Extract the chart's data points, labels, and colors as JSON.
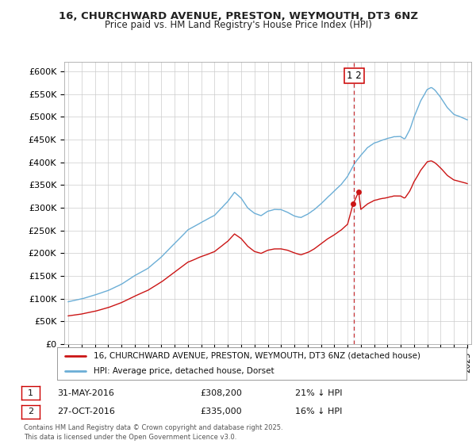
{
  "title_line1": "16, CHURCHWARD AVENUE, PRESTON, WEYMOUTH, DT3 6NZ",
  "title_line2": "Price paid vs. HM Land Registry's House Price Index (HPI)",
  "ylim": [
    0,
    620000
  ],
  "yticks": [
    0,
    50000,
    100000,
    150000,
    200000,
    250000,
    300000,
    350000,
    400000,
    450000,
    500000,
    550000,
    600000
  ],
  "ytick_labels": [
    "£0",
    "£50K",
    "£100K",
    "£150K",
    "£200K",
    "£250K",
    "£300K",
    "£350K",
    "£400K",
    "£450K",
    "£500K",
    "£550K",
    "£600K"
  ],
  "hpi_color": "#6baed6",
  "price_color": "#cb1515",
  "annotation_box_color": "#cc0000",
  "dashed_line_color": "#cc3333",
  "shade_color": "#d0e8f8",
  "legend_label_price": "16, CHURCHWARD AVENUE, PRESTON, WEYMOUTH, DT3 6NZ (detached house)",
  "legend_label_hpi": "HPI: Average price, detached house, Dorset",
  "sale1_date": "31-MAY-2016",
  "sale1_price": "£308,200",
  "sale1_note": "21% ↓ HPI",
  "sale2_date": "27-OCT-2016",
  "sale2_price": "£335,000",
  "sale2_note": "16% ↓ HPI",
  "footer": "Contains HM Land Registry data © Crown copyright and database right 2025.\nThis data is licensed under the Open Government Licence v3.0.",
  "xlim_left": 1994.7,
  "xlim_right": 2025.3,
  "sale_x": 2016.5,
  "sale1_y": 308200,
  "sale2_y": 335000,
  "background_color": "#ffffff",
  "grid_color": "#cccccc",
  "spine_color": "#aaaaaa"
}
